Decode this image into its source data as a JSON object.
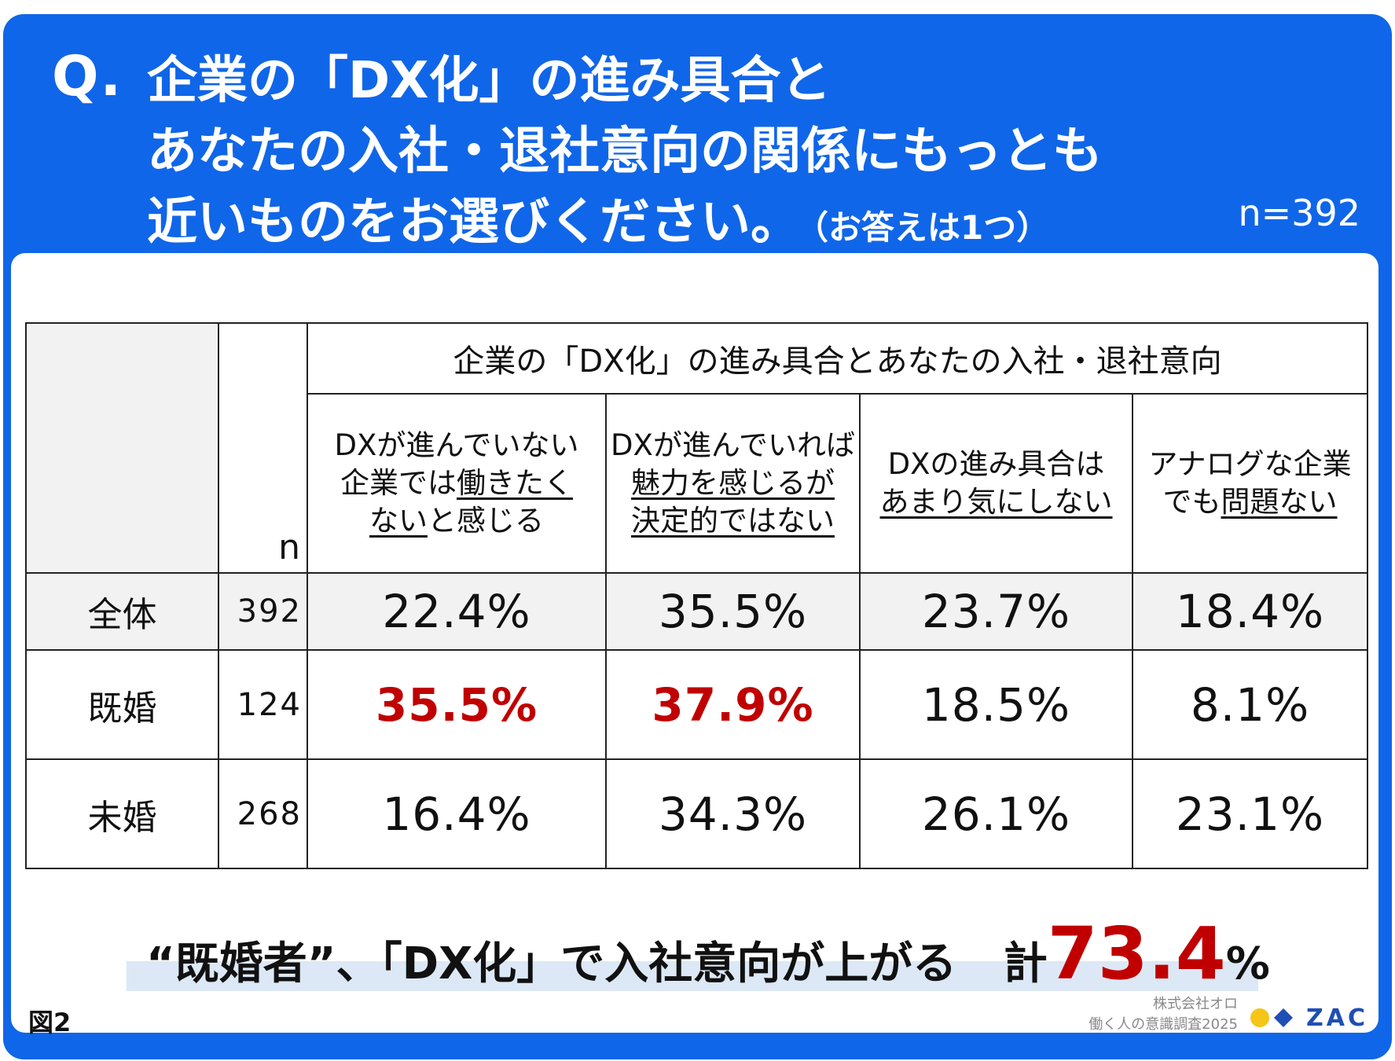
{
  "header": {
    "q_mark": "Q.",
    "question_lines": [
      "企業の「DX化」の進み具合と",
      "あなたの入社・退社意向の関係にもっとも",
      "近いものをお選びください。"
    ],
    "question_note": "（お答えは1つ）",
    "sample": "n=392"
  },
  "chart_data": {
    "type": "table",
    "group_header": "企業の「DX化」の進み具合とあなたの入社・退社意向",
    "n_header": "n",
    "columns": [
      {
        "line1": "DXが進んでいない",
        "line2a": "企業では",
        "line2b": "働きたく",
        "line3a": "ない",
        "line3b": "と感じる"
      },
      {
        "line1": "DXが進んでいれば",
        "line2": "魅力を感じるが",
        "line3": "決定的ではない"
      },
      {
        "line1": "DXの進み具合は",
        "line2": "あまり気にしない"
      },
      {
        "line1": "アナログな企業",
        "line2a": "でも",
        "line2b": "問題ない"
      }
    ],
    "rows": [
      {
        "label": "全体",
        "n": "392",
        "values": [
          "22.4%",
          "35.5%",
          "23.7%",
          "18.4%"
        ]
      },
      {
        "label": "既婚",
        "n": "124",
        "values": [
          "35.5%",
          "37.9%",
          "18.5%",
          "8.1%"
        ]
      },
      {
        "label": "未婚",
        "n": "268",
        "values": [
          "16.4%",
          "34.3%",
          "26.1%",
          "23.1%"
        ]
      }
    ],
    "highlight_color": "#c00000"
  },
  "summary": {
    "text": "“既婚者”、「DX化」で入社意向が上がる",
    "total_prefix": "計",
    "total_value": "73.4",
    "total_unit": "%"
  },
  "footer": {
    "figure": "図2",
    "company": "株式会社オロ",
    "survey": "働く人の意識調査2025",
    "logo_text": "ZAC"
  },
  "colors": {
    "frame": "#1066e8",
    "highlight": "#c00000",
    "logo_yellow": "#f5c518",
    "logo_blue": "#1f4fb3"
  }
}
